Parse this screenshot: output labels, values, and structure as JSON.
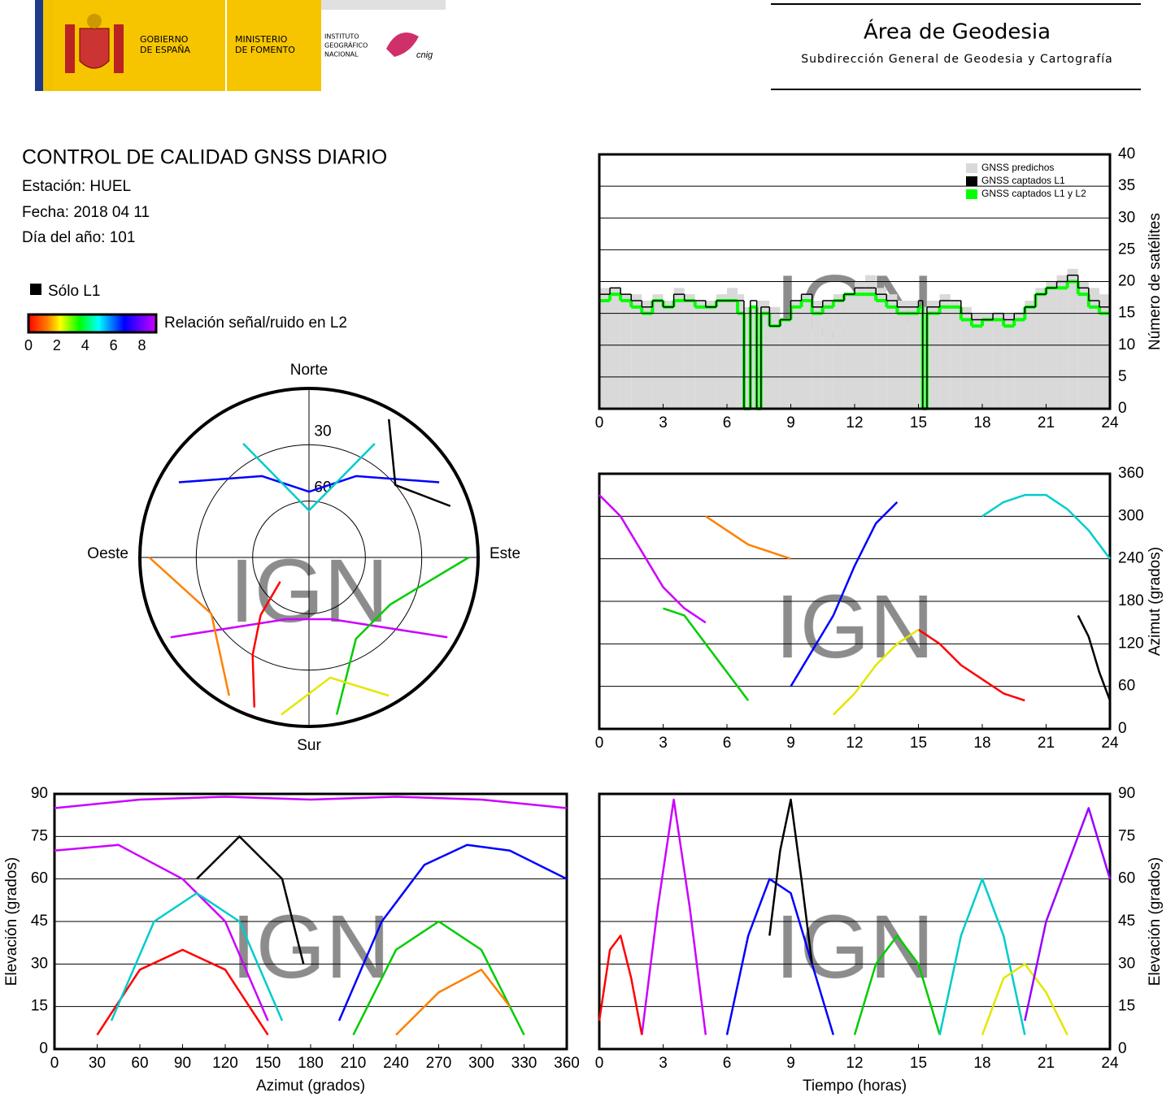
{
  "header": {
    "gov_lines": [
      "GOBIERNO",
      "DE ESPAÑA"
    ],
    "ministry_lines": [
      "MINISTERIO",
      "DE FOMENTO"
    ],
    "institute_lines": [
      "INSTITUTO",
      "GEOGRÁFICO",
      "NACIONAL"
    ],
    "cnig": "cnig",
    "area": "Área de Geodesia",
    "subdirection": "Subdirección General de Geodesia y Cartografía"
  },
  "report": {
    "title": "CONTROL DE CALIDAD GNSS DIARIO",
    "station": "Estación: HUEL",
    "date": "Fecha: 2018 04 11",
    "doy": "Día del año: 101"
  },
  "snr_legend": {
    "l1_only": "Sólo L1",
    "label": "Relación señal/ruido en L2",
    "lim": [
      0,
      9
    ],
    "ticks": [
      0,
      2,
      4,
      6,
      8
    ]
  },
  "chart_data": [
    {
      "type": "step",
      "ylabel": "Número de satélites",
      "watermark": "IGN",
      "xlim": [
        0,
        24
      ],
      "xticks": [
        0,
        3,
        6,
        9,
        12,
        15,
        18,
        21,
        24
      ],
      "ylim": [
        0,
        40
      ],
      "yticks": [
        0,
        5,
        10,
        15,
        20,
        25,
        30,
        35,
        40
      ],
      "grid": true,
      "legend": "top-right",
      "x": [
        0,
        0.5,
        1,
        1.5,
        2,
        2.5,
        3,
        3.5,
        4,
        4.5,
        5,
        5.5,
        6,
        6.5,
        6.8,
        7.1,
        7.4,
        7.6,
        8,
        8.5,
        9,
        9.5,
        10,
        10.5,
        11,
        11.5,
        12,
        12.5,
        13,
        13.5,
        14,
        14.5,
        15,
        15.2,
        15.4,
        16,
        16.5,
        17,
        17.5,
        18,
        18.5,
        19,
        19.5,
        20,
        20.5,
        21,
        21.5,
        22,
        22.5,
        23,
        23.5
      ],
      "series": [
        {
          "name": "GNSS predichos",
          "color": "#d9d9d9",
          "values": [
            19,
            19,
            18,
            18,
            17,
            18,
            17,
            19,
            18,
            17,
            17,
            18,
            19,
            18,
            16,
            16,
            17,
            17,
            16,
            14,
            17,
            18,
            17,
            17,
            18,
            18,
            20,
            21,
            19,
            18,
            17,
            17,
            16,
            16,
            17,
            18,
            17,
            16,
            15,
            15,
            15,
            15,
            15,
            17,
            19,
            20,
            21,
            22,
            20,
            19,
            18
          ]
        },
        {
          "name": "GNSS captados L1",
          "color": "#000000",
          "values": [
            18,
            19,
            18,
            17,
            16,
            17,
            16,
            18,
            17,
            17,
            16,
            17,
            17,
            17,
            0,
            17,
            0,
            16,
            13,
            14,
            17,
            18,
            16,
            17,
            17,
            18,
            19,
            19,
            18,
            17,
            16,
            16,
            17,
            0,
            16,
            17,
            17,
            15,
            14,
            14,
            15,
            14,
            15,
            16,
            18,
            19,
            20,
            21,
            19,
            17,
            16
          ]
        },
        {
          "name": "GNSS captados L1 y L2",
          "color": "#00ff00",
          "values": [
            17,
            18,
            17,
            16,
            15,
            17,
            16,
            17,
            17,
            16,
            16,
            17,
            17,
            15,
            0,
            16,
            0,
            15,
            13,
            14,
            16,
            17,
            15,
            16,
            17,
            18,
            18,
            18,
            17,
            16,
            15,
            15,
            16,
            0,
            15,
            16,
            16,
            14,
            13,
            14,
            14,
            13,
            14,
            16,
            18,
            19,
            19,
            20,
            18,
            16,
            15
          ]
        }
      ]
    },
    {
      "type": "line",
      "ylabel": "Azimut (grados)",
      "watermark": "IGN",
      "xlim": [
        0,
        24
      ],
      "xticks": [
        0,
        3,
        6,
        9,
        12,
        15,
        18,
        21,
        24
      ],
      "ylim": [
        0,
        360
      ],
      "yticks": [
        0,
        60,
        120,
        180,
        240,
        300,
        360
      ],
      "grid": true,
      "tracks": [
        {
          "color": "#cc00ff",
          "x": [
            0,
            1,
            2,
            3,
            4,
            5
          ],
          "y": [
            330,
            300,
            250,
            200,
            170,
            150
          ]
        },
        {
          "color": "#0000ff",
          "x": [
            9,
            10,
            11,
            12,
            13,
            14
          ],
          "y": [
            60,
            110,
            160,
            230,
            290,
            320
          ]
        },
        {
          "color": "#ff0000",
          "x": [
            15,
            16,
            17,
            18,
            19,
            20
          ],
          "y": [
            140,
            120,
            90,
            70,
            50,
            40
          ]
        },
        {
          "color": "#00cc00",
          "x": [
            3,
            4,
            5,
            6,
            7
          ],
          "y": [
            170,
            160,
            120,
            80,
            40
          ]
        },
        {
          "color": "#00cccc",
          "x": [
            18,
            19,
            20,
            21,
            22,
            23,
            24
          ],
          "y": [
            300,
            320,
            330,
            330,
            310,
            280,
            240
          ]
        },
        {
          "color": "#000000",
          "x": [
            22.5,
            23,
            23.5,
            24
          ],
          "y": [
            160,
            130,
            80,
            40
          ]
        },
        {
          "color": "#e6e600",
          "x": [
            11,
            12,
            13,
            14,
            15
          ],
          "y": [
            20,
            50,
            90,
            120,
            140
          ]
        },
        {
          "color": "#ff8000",
          "x": [
            5,
            6,
            7,
            8,
            9
          ],
          "y": [
            300,
            280,
            260,
            250,
            240
          ]
        }
      ]
    },
    {
      "type": "polar",
      "watermark": "IGN",
      "directions": {
        "north": "Norte",
        "south": "Sur",
        "east": "Este",
        "west": "Oeste"
      },
      "rings": [
        30,
        60
      ],
      "tracks": [
        {
          "color": "#cc00ff",
          "az": [
            240,
            200,
            160,
            120
          ],
          "el": [
            5,
            55,
            55,
            5
          ]
        },
        {
          "color": "#0000ff",
          "az": [
            300,
            330,
            0,
            30,
            60
          ],
          "el": [
            10,
            40,
            55,
            40,
            10
          ]
        },
        {
          "color": "#ff0000",
          "az": [
            200,
            210,
            220,
            230
          ],
          "el": [
            5,
            30,
            50,
            70
          ]
        },
        {
          "color": "#00cc00",
          "az": [
            170,
            150,
            120,
            90
          ],
          "el": [
            5,
            40,
            40,
            5
          ]
        },
        {
          "color": "#00cccc",
          "az": [
            330,
            0,
            30
          ],
          "el": [
            20,
            65,
            20
          ]
        },
        {
          "color": "#000000",
          "az": [
            30,
            50,
            70
          ],
          "el": [
            5,
            30,
            10
          ]
        },
        {
          "color": "#e6e600",
          "az": [
            190,
            170,
            150
          ],
          "el": [
            5,
            25,
            5
          ]
        },
        {
          "color": "#ff8000",
          "az": [
            270,
            240,
            210
          ],
          "el": [
            5,
            30,
            5
          ]
        }
      ]
    },
    {
      "type": "line",
      "xlabel": "Azimut (grados)",
      "ylabel": "Elevación (grados)",
      "watermark": "IGN",
      "xlim": [
        0,
        360
      ],
      "xticks": [
        0,
        30,
        60,
        90,
        120,
        150,
        180,
        210,
        240,
        270,
        300,
        330,
        360
      ],
      "ylim": [
        0,
        90
      ],
      "yticks": [
        0,
        15,
        30,
        45,
        60,
        75,
        90
      ],
      "grid": true,
      "tracks": [
        {
          "color": "#cc00ff",
          "x": [
            0,
            45,
            90,
            120,
            150
          ],
          "y": [
            70,
            72,
            60,
            45,
            10
          ]
        },
        {
          "color": "#0000ff",
          "x": [
            200,
            230,
            260,
            290,
            320,
            360
          ],
          "y": [
            10,
            45,
            65,
            72,
            70,
            60
          ]
        },
        {
          "color": "#ff0000",
          "x": [
            30,
            60,
            90,
            120,
            150
          ],
          "y": [
            5,
            28,
            35,
            28,
            5
          ]
        },
        {
          "color": "#00cc00",
          "x": [
            210,
            240,
            270,
            300,
            330
          ],
          "y": [
            5,
            35,
            45,
            35,
            5
          ]
        },
        {
          "color": "#00cccc",
          "x": [
            40,
            70,
            100,
            130,
            160
          ],
          "y": [
            10,
            45,
            55,
            45,
            10
          ]
        },
        {
          "color": "#000000",
          "x": [
            100,
            130,
            160,
            175
          ],
          "y": [
            60,
            75,
            60,
            30
          ]
        },
        {
          "color": "#ff8000",
          "x": [
            240,
            270,
            300,
            320
          ],
          "y": [
            5,
            20,
            28,
            15
          ]
        },
        {
          "color": "#cc00ff",
          "x": [
            0,
            60,
            120,
            180,
            240,
            300,
            360
          ],
          "y": [
            85,
            88,
            89,
            88,
            89,
            88,
            85
          ]
        }
      ]
    },
    {
      "type": "line",
      "xlabel": "Tiempo (horas)",
      "ylabel": "Elevación (grados)",
      "watermark": "IGN",
      "xlim": [
        0,
        24
      ],
      "xticks": [
        0,
        3,
        6,
        9,
        12,
        15,
        18,
        21,
        24
      ],
      "ylim": [
        0,
        90
      ],
      "yticks": [
        0,
        15,
        30,
        45,
        60,
        75,
        90
      ],
      "grid": true,
      "tracks": [
        {
          "color": "#cc00ff",
          "x": [
            2,
            2.75,
            3.5,
            4.25,
            5
          ],
          "y": [
            5,
            50,
            88,
            50,
            5
          ]
        },
        {
          "color": "#0000ff",
          "x": [
            6,
            7,
            8,
            9,
            10,
            11
          ],
          "y": [
            5,
            40,
            60,
            55,
            30,
            5
          ]
        },
        {
          "color": "#ff0000",
          "x": [
            0,
            0.5,
            1,
            1.5,
            2
          ],
          "y": [
            10,
            35,
            40,
            25,
            5
          ]
        },
        {
          "color": "#00cc00",
          "x": [
            12,
            13,
            14,
            15,
            16
          ],
          "y": [
            5,
            30,
            40,
            30,
            5
          ]
        },
        {
          "color": "#00cccc",
          "x": [
            16,
            17,
            18,
            19,
            20
          ],
          "y": [
            5,
            40,
            60,
            40,
            5
          ]
        },
        {
          "color": "#000000",
          "x": [
            8,
            8.5,
            9,
            9.5,
            10
          ],
          "y": [
            40,
            70,
            88,
            60,
            30
          ]
        },
        {
          "color": "#e6e600",
          "x": [
            18,
            19,
            20,
            21,
            22
          ],
          "y": [
            5,
            25,
            30,
            20,
            5
          ]
        },
        {
          "color": "#9900ff",
          "x": [
            20,
            21,
            22,
            23,
            24
          ],
          "y": [
            10,
            45,
            65,
            85,
            60
          ]
        }
      ]
    }
  ]
}
